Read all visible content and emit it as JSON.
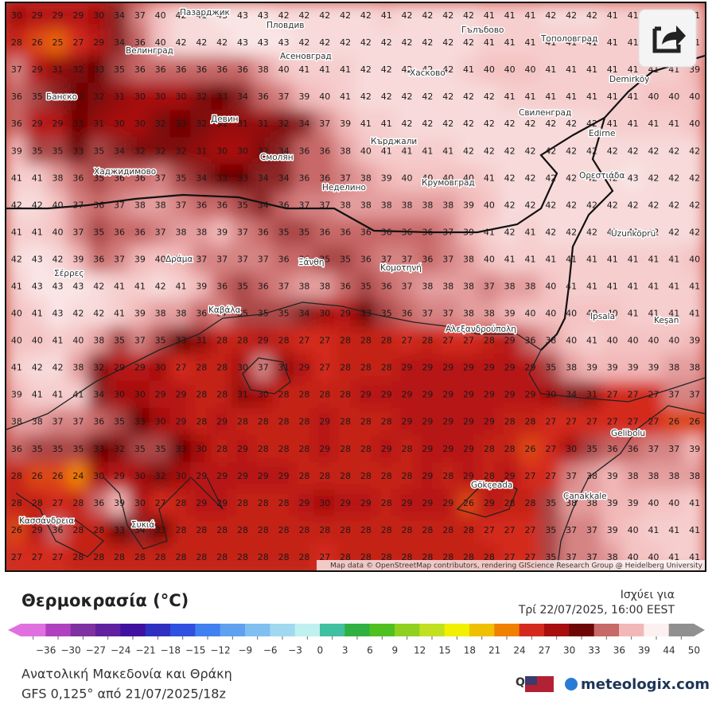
{
  "map": {
    "attribution": "Map data © OpenStreetMap contributors, rendering GIScience Research Group @ Heidelberg University",
    "places": [
      "Пазарджик",
      "Пловдив",
      "Гълъбово",
      "Велинград",
      "Асеновград",
      "Тополовград",
      "Хасково",
      "Demirköy",
      "Банско",
      "Свиленград",
      "Девин",
      "Edirne",
      "Кърджали",
      "Смолян",
      "Хаджидимово",
      "Неделино",
      "Крумовград",
      "Ορεστιάδα",
      "Uzunköprü",
      "Δράμα",
      "Ξάνθη",
      "Σέρρες",
      "Κομοτηνή",
      "Καβάλα",
      "Αλεξανδρούπολη",
      "Ipsala",
      "Keşan",
      "Gelibolu",
      "Gökçeada",
      "Çanakkale",
      "Κασσάνδρεια",
      "Συκιά"
    ],
    "grid": [
      [
        30,
        29,
        29,
        29,
        30,
        34,
        37,
        40,
        42,
        42,
        43,
        43,
        43,
        42,
        42,
        42,
        42,
        42,
        41,
        42,
        42,
        42,
        42,
        41,
        41,
        41,
        42,
        42,
        42,
        41,
        41,
        41,
        41,
        41
      ],
      [
        28,
        26,
        25,
        27,
        29,
        34,
        36,
        40,
        42,
        42,
        42,
        43,
        43,
        43,
        42,
        42,
        42,
        42,
        42,
        42,
        42,
        42,
        42,
        41,
        41,
        41,
        41,
        41,
        41,
        41,
        41,
        41,
        41,
        41
      ],
      [
        37,
        29,
        31,
        32,
        33,
        35,
        36,
        36,
        36,
        36,
        36,
        36,
        38,
        40,
        41,
        41,
        41,
        42,
        42,
        42,
        42,
        42,
        41,
        40,
        40,
        40,
        41,
        41,
        41,
        41,
        41,
        41,
        41,
        39
      ],
      [
        36,
        35,
        34,
        33,
        32,
        31,
        30,
        30,
        30,
        32,
        33,
        34,
        36,
        37,
        39,
        40,
        41,
        42,
        42,
        42,
        42,
        42,
        42,
        42,
        41,
        41,
        41,
        41,
        41,
        41,
        41,
        40,
        40,
        40
      ],
      [
        36,
        29,
        29,
        33,
        31,
        30,
        30,
        32,
        33,
        32,
        31,
        31,
        31,
        32,
        34,
        37,
        39,
        41,
        41,
        42,
        42,
        42,
        42,
        42,
        42,
        42,
        42,
        42,
        42,
        41,
        41,
        41,
        41,
        40
      ],
      [
        39,
        35,
        35,
        33,
        35,
        34,
        32,
        32,
        32,
        31,
        30,
        30,
        32,
        34,
        36,
        36,
        38,
        40,
        41,
        41,
        41,
        41,
        42,
        42,
        42,
        42,
        42,
        42,
        42,
        42,
        42,
        42,
        42,
        42
      ],
      [
        41,
        41,
        38,
        36,
        35,
        36,
        36,
        37,
        35,
        34,
        33,
        33,
        34,
        34,
        36,
        36,
        37,
        38,
        39,
        40,
        40,
        40,
        40,
        41,
        42,
        42,
        42,
        42,
        42,
        42,
        43,
        42,
        42,
        42
      ],
      [
        42,
        42,
        40,
        37,
        36,
        37,
        38,
        38,
        37,
        36,
        36,
        35,
        34,
        36,
        37,
        37,
        38,
        38,
        38,
        38,
        38,
        38,
        39,
        40,
        42,
        42,
        42,
        42,
        42,
        42,
        42,
        42,
        42,
        42
      ],
      [
        41,
        41,
        40,
        37,
        35,
        36,
        36,
        37,
        38,
        38,
        39,
        37,
        36,
        35,
        35,
        36,
        36,
        36,
        36,
        36,
        36,
        37,
        39,
        41,
        42,
        41,
        42,
        42,
        42,
        42,
        42,
        42,
        42,
        42
      ],
      [
        42,
        43,
        42,
        39,
        36,
        37,
        39,
        40,
        39,
        37,
        37,
        37,
        37,
        36,
        36,
        35,
        35,
        36,
        37,
        37,
        36,
        37,
        38,
        40,
        41,
        41,
        41,
        41,
        41,
        41,
        41,
        41,
        41,
        40
      ],
      [
        41,
        43,
        43,
        43,
        42,
        41,
        41,
        42,
        41,
        39,
        36,
        35,
        36,
        37,
        38,
        38,
        36,
        35,
        36,
        37,
        38,
        38,
        38,
        37,
        38,
        38,
        40,
        41,
        41,
        41,
        41,
        41,
        41,
        41
      ],
      [
        40,
        41,
        43,
        42,
        42,
        41,
        39,
        38,
        38,
        36,
        37,
        35,
        35,
        35,
        34,
        30,
        29,
        33,
        35,
        36,
        37,
        37,
        38,
        38,
        39,
        40,
        40,
        40,
        40,
        40,
        41,
        41,
        41,
        41
      ],
      [
        40,
        40,
        41,
        40,
        38,
        35,
        37,
        35,
        33,
        31,
        28,
        28,
        29,
        28,
        27,
        27,
        28,
        28,
        28,
        27,
        28,
        27,
        27,
        28,
        29,
        36,
        38,
        40,
        41,
        40,
        40,
        40,
        40,
        39
      ],
      [
        41,
        42,
        42,
        38,
        32,
        29,
        29,
        30,
        27,
        28,
        28,
        30,
        37,
        31,
        29,
        27,
        28,
        28,
        28,
        29,
        29,
        29,
        29,
        29,
        29,
        29,
        35,
        38,
        39,
        39,
        39,
        39,
        38,
        38
      ],
      [
        39,
        41,
        41,
        41,
        34,
        30,
        30,
        29,
        29,
        28,
        28,
        31,
        30,
        28,
        28,
        28,
        28,
        29,
        29,
        29,
        29,
        29,
        29,
        29,
        29,
        29,
        30,
        34,
        31,
        27,
        27,
        27,
        37,
        37
      ],
      [
        38,
        38,
        37,
        37,
        36,
        35,
        33,
        30,
        29,
        28,
        29,
        28,
        28,
        28,
        28,
        29,
        28,
        28,
        28,
        29,
        29,
        29,
        29,
        29,
        28,
        28,
        27,
        27,
        27,
        27,
        27,
        27,
        26,
        26
      ],
      [
        36,
        35,
        35,
        35,
        33,
        32,
        35,
        35,
        33,
        30,
        28,
        29,
        28,
        28,
        28,
        29,
        28,
        28,
        29,
        28,
        29,
        29,
        29,
        28,
        28,
        26,
        27,
        30,
        35,
        36,
        36,
        37,
        37,
        39
      ],
      [
        28,
        26,
        26,
        24,
        30,
        29,
        30,
        32,
        30,
        29,
        29,
        29,
        29,
        29,
        28,
        28,
        28,
        28,
        28,
        28,
        29,
        28,
        29,
        28,
        29,
        27,
        27,
        37,
        38,
        39,
        38,
        38,
        38,
        38
      ],
      [
        28,
        28,
        27,
        28,
        36,
        39,
        30,
        27,
        28,
        29,
        29,
        28,
        28,
        28,
        29,
        30,
        29,
        29,
        28,
        29,
        29,
        29,
        26,
        29,
        28,
        28,
        35,
        38,
        38,
        39,
        39,
        40,
        40,
        41
      ],
      [
        26,
        29,
        36,
        28,
        28,
        33,
        34,
        33,
        28,
        28,
        28,
        28,
        28,
        28,
        28,
        28,
        28,
        28,
        28,
        28,
        28,
        28,
        28,
        27,
        27,
        27,
        35,
        37,
        37,
        39,
        40,
        41,
        41,
        41
      ],
      [
        27,
        27,
        27,
        28,
        28,
        28,
        28,
        28,
        28,
        28,
        28,
        28,
        28,
        28,
        28,
        27,
        28,
        28,
        28,
        28,
        28,
        28,
        28,
        28,
        27,
        27,
        35,
        37,
        37,
        38,
        40,
        40,
        41,
        41
      ]
    ]
  },
  "legend": {
    "title": "Θερμοκρασία (°C)",
    "valid_label": "Ισχύει για",
    "valid_time": "Τρί 22/07/2025, 16:00 EEST",
    "ticks": [
      {
        "value": -36,
        "label": "−36"
      },
      {
        "value": -30,
        "label": "−30"
      },
      {
        "value": -27,
        "label": "−27"
      },
      {
        "value": -24,
        "label": "−24"
      },
      {
        "value": -21,
        "label": "−21"
      },
      {
        "value": -18,
        "label": "−18"
      },
      {
        "value": -15,
        "label": "−15"
      },
      {
        "value": -12,
        "label": "−12"
      },
      {
        "value": -9,
        "label": "−9"
      },
      {
        "value": -6,
        "label": "−6"
      },
      {
        "value": -3,
        "label": "−3"
      },
      0,
      3,
      6,
      9,
      12,
      15,
      18,
      21,
      24,
      27,
      30,
      33,
      36,
      39,
      44,
      50
    ],
    "colors": [
      "#e070e0",
      "#b040c0",
      "#8030a0",
      "#6020a0",
      "#4010a0",
      "#3030c0",
      "#3050e0",
      "#4080f0",
      "#60a0f0",
      "#80c0f0",
      "#a0d8f0",
      "#c0f0f0",
      "#40c0a0",
      "#30b040",
      "#50c020",
      "#90d020",
      "#c0e020",
      "#f0f000",
      "#f0c000",
      "#f08000",
      "#d42a1e",
      "#a80e0e",
      "#6e0606",
      "#c86868",
      "#f2b8b8",
      "#fcf0f0",
      "#909090"
    ]
  },
  "footer": {
    "region": "Ανατολική Μακεδονία και Θράκη",
    "model": "GFS 0,125° από 21/07/2025/18z",
    "brand": "meteologix.com"
  }
}
